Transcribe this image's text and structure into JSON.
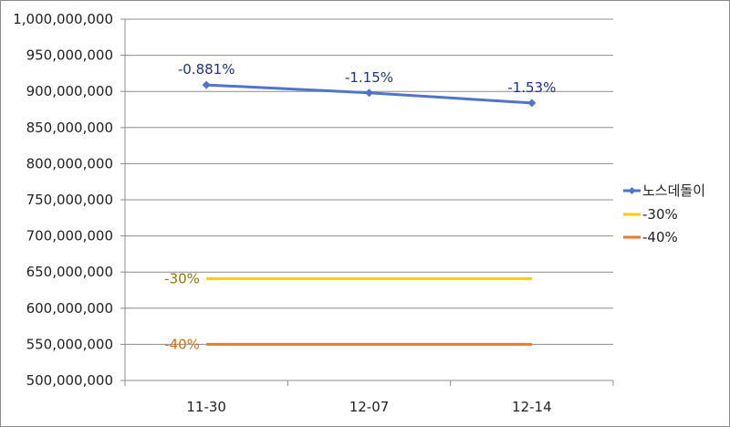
{
  "chart_data": {
    "type": "line",
    "categories": [
      "11-30",
      "12-07",
      "12-14"
    ],
    "ylim": [
      500000000,
      1000000000
    ],
    "ytick_step": 50000000,
    "grid": true,
    "legend_placement": "right",
    "series": [
      {
        "name": "노스데돌이",
        "values": [
          909000000,
          898000000,
          884000000
        ],
        "color": "#4f74c8",
        "marker": "diamond",
        "data_labels": [
          "-0.881%",
          "-1.15%",
          "-1.53%"
        ],
        "label_color": "#1f2f8a"
      },
      {
        "name": "-30%",
        "values": [
          641000000,
          641000000,
          641000000
        ],
        "color": "#ffcc00",
        "marker": "none",
        "data_labels": [
          "-30%",
          "",
          ""
        ],
        "label_color": "#8a7a00"
      },
      {
        "name": "-40%",
        "values": [
          550000000,
          550000000,
          550000000
        ],
        "color": "#f07a22",
        "marker": "none",
        "data_labels": [
          "-40%",
          "",
          ""
        ],
        "label_color": "#e06a10"
      }
    ],
    "ytick_labels": [
      "500,000,000",
      "550,000,000",
      "600,000,000",
      "650,000,000",
      "700,000,000",
      "750,000,000",
      "800,000,000",
      "850,000,000",
      "900,000,000",
      "950,000,000",
      "1,000,000,000"
    ]
  }
}
